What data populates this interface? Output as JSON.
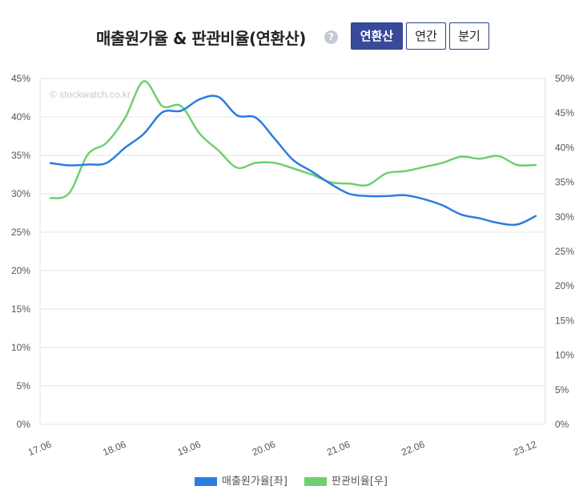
{
  "header": {
    "title": "매출원가율 & 판관비율(연환산)",
    "help_icon": "question-circle-icon",
    "buttons": [
      {
        "label": "연환산",
        "active": true
      },
      {
        "label": "연간",
        "active": false
      },
      {
        "label": "분기",
        "active": false
      }
    ]
  },
  "watermark": "© stockwatch.co.kr",
  "chart_data": {
    "type": "line",
    "title": "매출원가율 & 판관비율(연환산)",
    "x_tick_labels": [
      "17.06",
      "18.06",
      "19.06",
      "20.06",
      "21.06",
      "22.06",
      "23.12"
    ],
    "y_left": {
      "ticks": [
        "0%",
        "5%",
        "10%",
        "15%",
        "20%",
        "25%",
        "30%",
        "35%",
        "40%",
        "45%"
      ],
      "ylim": [
        0,
        45
      ],
      "unit": "%"
    },
    "y_right": {
      "ticks": [
        "0%",
        "5%",
        "10%",
        "15%",
        "20%",
        "25%",
        "30%",
        "35%",
        "40%",
        "45%",
        "50%"
      ],
      "ylim": [
        0,
        50
      ],
      "unit": "%"
    },
    "grid": "horizontal",
    "legend_position": "bottom",
    "x": [
      "17.06",
      "17.09",
      "17.12",
      "18.03",
      "18.06",
      "18.09",
      "18.12",
      "19.03",
      "19.06",
      "19.09",
      "19.12",
      "20.03",
      "20.06",
      "20.09",
      "20.12",
      "21.03",
      "21.06",
      "21.09",
      "21.12",
      "22.03",
      "22.06",
      "22.09",
      "22.12",
      "23.03",
      "23.06",
      "23.09",
      "23.12"
    ],
    "series": [
      {
        "name": "매출원가율[좌]",
        "axis": "left",
        "color": "#2b7de0",
        "values": [
          34.0,
          33.7,
          33.8,
          34.0,
          36.0,
          37.8,
          40.6,
          40.8,
          42.3,
          42.6,
          40.2,
          39.9,
          37.2,
          34.4,
          32.9,
          31.3,
          30.0,
          29.7,
          29.7,
          29.8,
          29.3,
          28.5,
          27.3,
          26.8,
          26.2,
          26.0,
          27.1
        ]
      },
      {
        "name": "판관비율[우]",
        "axis": "right",
        "color": "#6fcf6f",
        "values": [
          32.7,
          33.4,
          39.0,
          40.7,
          44.3,
          49.6,
          46.0,
          46.0,
          42.0,
          39.6,
          37.1,
          37.8,
          37.8,
          37.0,
          36.1,
          35.0,
          34.8,
          34.6,
          36.3,
          36.6,
          37.2,
          37.8,
          38.7,
          38.4,
          38.8,
          37.5,
          37.5
        ]
      }
    ]
  },
  "legend": [
    {
      "label": "매출원가율[좌]",
      "color": "#2b7de0"
    },
    {
      "label": "판관비율[우]",
      "color": "#6fcf6f"
    }
  ]
}
